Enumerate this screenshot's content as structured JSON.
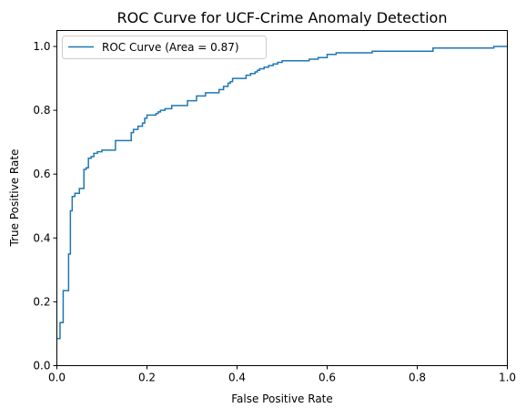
{
  "chart_data": {
    "type": "line",
    "title": "ROC Curve for UCF-Crime Anomaly Detection",
    "xlabel": "False Positive Rate",
    "ylabel": "True Positive Rate",
    "xlim": [
      0,
      1
    ],
    "ylim": [
      0,
      1.05
    ],
    "x_ticks": [
      "0.0",
      "0.2",
      "0.4",
      "0.6",
      "0.8",
      "1.0"
    ],
    "y_ticks": [
      "0.0",
      "0.2",
      "0.4",
      "0.6",
      "0.8",
      "1.0"
    ],
    "grid": false,
    "legend_position": "upper-left",
    "series": [
      {
        "name": "ROC Curve (Area = 0.87)",
        "color": "#1f77b4",
        "step": true,
        "x": [
          0.0,
          0.007,
          0.014,
          0.026,
          0.03,
          0.034,
          0.04,
          0.05,
          0.06,
          0.065,
          0.07,
          0.076,
          0.082,
          0.09,
          0.1,
          0.13,
          0.165,
          0.17,
          0.18,
          0.19,
          0.195,
          0.2,
          0.22,
          0.225,
          0.23,
          0.24,
          0.255,
          0.29,
          0.31,
          0.33,
          0.36,
          0.37,
          0.38,
          0.385,
          0.39,
          0.42,
          0.43,
          0.44,
          0.445,
          0.45,
          0.46,
          0.47,
          0.48,
          0.49,
          0.5,
          0.56,
          0.58,
          0.6,
          0.62,
          0.7,
          0.76,
          0.835,
          0.97,
          1.0
        ],
        "y": [
          0.085,
          0.135,
          0.235,
          0.35,
          0.485,
          0.53,
          0.54,
          0.555,
          0.615,
          0.62,
          0.65,
          0.655,
          0.665,
          0.67,
          0.675,
          0.705,
          0.73,
          0.74,
          0.75,
          0.76,
          0.775,
          0.785,
          0.79,
          0.795,
          0.8,
          0.805,
          0.815,
          0.83,
          0.845,
          0.855,
          0.865,
          0.875,
          0.885,
          0.89,
          0.9,
          0.91,
          0.915,
          0.92,
          0.925,
          0.93,
          0.935,
          0.94,
          0.945,
          0.95,
          0.955,
          0.96,
          0.965,
          0.975,
          0.98,
          0.985,
          0.985,
          0.995,
          1.0,
          1.0
        ]
      }
    ]
  }
}
